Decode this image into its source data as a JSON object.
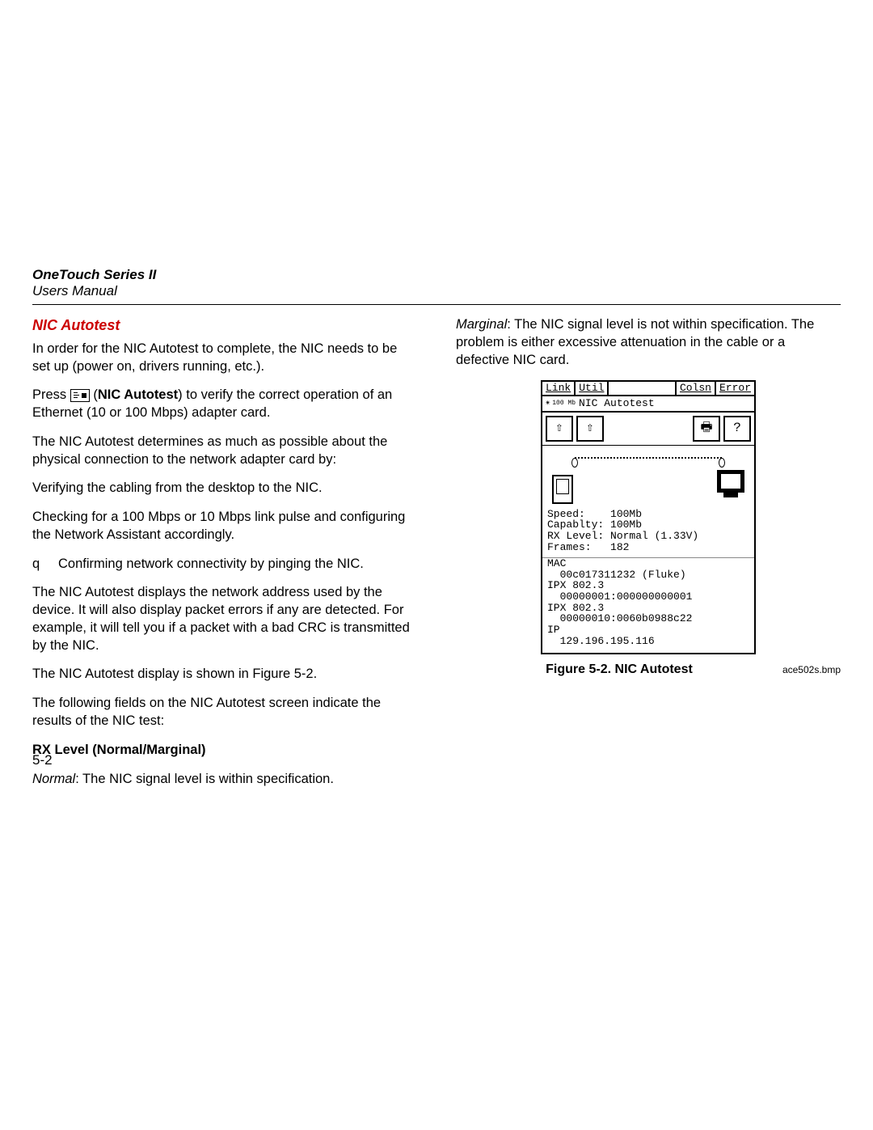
{
  "header": {
    "title": "OneTouch Series II",
    "subtitle": "Users Manual"
  },
  "left": {
    "section_title": "NIC Autotest",
    "p1": "In order for the NIC Autotest to complete, the NIC needs to be set up (power on, drivers running, etc.).",
    "p2a": "Press ",
    "p2b": " (",
    "p2c": "NIC Autotest",
    "p2d": ") to verify the correct operation of an Ethernet (10 or 100 Mbps) adapter card.",
    "p3": "The NIC Autotest determines as much as possible about the physical connection to the network adapter card by:",
    "b1": "Verifying the cabling from the desktop to the NIC.",
    "b2": "Checking for a 100 Mbps or 10 Mbps link pulse and configuring the Network Assistant accordingly.",
    "b3_marker": "q",
    "b3": "Confirming network connectivity by pinging the NIC.",
    "p4": "The NIC Autotest displays the network address used by the device. It will also display packet errors if any are detected. For example, it will tell you if a packet with a bad CRC is transmitted by the NIC.",
    "p5": "The NIC Autotest display is shown in Figure 5-2.",
    "p6": "The following fields on the NIC Autotest screen indicate the results of the NIC test:",
    "rx_heading": "RX Level (Normal/Marginal)",
    "normal_label": "Normal",
    "normal_text": ":  The NIC signal level is within specification."
  },
  "right": {
    "marginal_label": "Marginal",
    "marginal_text": ":  The NIC signal level is not within specification. The problem is either excessive attenuation in the cable or a defective NIC card.",
    "fig_caption": "Figure 5-2. NIC Autotest",
    "bmp": "ace502s.bmp"
  },
  "device": {
    "tabs": {
      "t1": "Link",
      "t2": "Util",
      "t3": "Colsn",
      "t4": "Error"
    },
    "title_rate": "100\nMb",
    "title": "NIC Autotest",
    "buttons": {
      "b1": "⇧",
      "b2": "⇧",
      "b3": "🖶",
      "b4": "?"
    },
    "stats": "Speed:    100Mb\nCapablty: 100Mb\nRX Level: Normal (1.33V)\nFrames:   182",
    "addrs": "MAC\n  00c017311232 (Fluke)\nIPX 802.3\n  00000001:000000000001\nIPX 802.3\n  00000010:0060b0988c22\nIP\n  129.196.195.116"
  },
  "page_number": "5-2",
  "colors": {
    "accent": "#cc0000",
    "text": "#000000",
    "bg": "#ffffff"
  }
}
